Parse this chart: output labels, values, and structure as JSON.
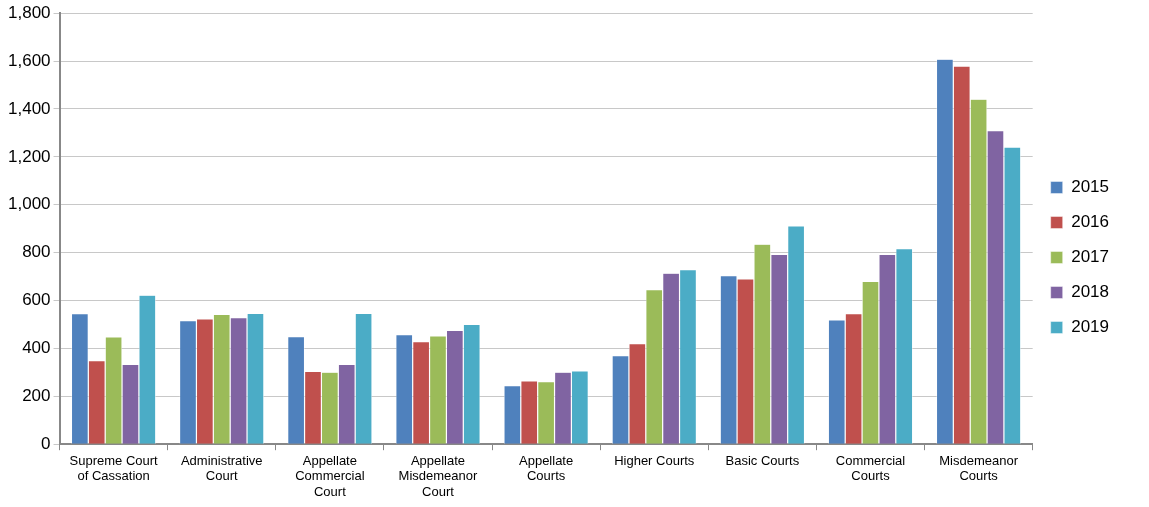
{
  "chart_data": {
    "type": "bar",
    "categories": [
      "Supreme Court of Cassation",
      "Administrative Court",
      "Appellate Commercial Court",
      "Appellate Misdemeanor Court",
      "Appellate Courts",
      "Higher Courts",
      "Basic Courts",
      "Commercial Courts",
      "Misdemeanor Courts"
    ],
    "series": [
      {
        "name": "2015",
        "color": "#4f81bd",
        "values": [
          545,
          516,
          449,
          458,
          245,
          370,
          704,
          519,
          1608
        ]
      },
      {
        "name": "2016",
        "color": "#c0504d",
        "values": [
          349,
          523,
          304,
          428,
          264,
          420,
          690,
          545,
          1579
        ]
      },
      {
        "name": "2017",
        "color": "#9bbb59",
        "values": [
          448,
          542,
          301,
          452,
          261,
          645,
          835,
          680,
          1441
        ]
      },
      {
        "name": "2018",
        "color": "#8064a2",
        "values": [
          333,
          528,
          333,
          475,
          301,
          714,
          793,
          793,
          1310
        ]
      },
      {
        "name": "2019",
        "color": "#4bacc6",
        "values": [
          622,
          546,
          546,
          500,
          306,
          729,
          912,
          817,
          1241
        ]
      }
    ],
    "ylim": [
      0,
      1800
    ],
    "yticks": [
      0,
      200,
      400,
      600,
      800,
      {
        "value": 1000,
        "label": "1,000"
      },
      {
        "value": 1200,
        "label": "1,200"
      },
      {
        "value": 1400,
        "label": "1,400"
      },
      {
        "value": 1600,
        "label": "1,600"
      },
      {
        "value": 1800,
        "label": "1,800"
      }
    ],
    "grid": "y",
    "legend": "right"
  }
}
